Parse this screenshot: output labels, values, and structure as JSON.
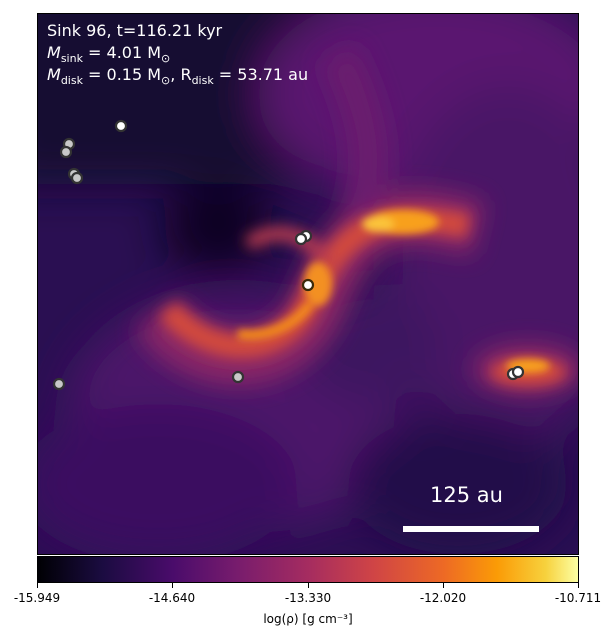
{
  "annotation": {
    "line1": "Sink 96, t=116.21 kyr",
    "line2_prefix": "M",
    "line2_sub": "sink",
    "line2_rest": " = 4.01 M",
    "line2_sun_sub": "⊙",
    "line3_prefix": "M",
    "line3_sub": "disk",
    "line3_mid": " = 0.15 M",
    "line3_sun_sub": "⊙",
    "line3_sep": ", R",
    "line3_r_sub": "disk",
    "line3_rest": " = 53.71 au"
  },
  "scalebar": {
    "label": "125 au"
  },
  "colorbar": {
    "ticks": [
      "-15.949",
      "-14.640",
      "-13.330",
      "-12.020",
      "-10.711"
    ],
    "label": "log(ρ) [g cm⁻³]",
    "colormap": "inferno"
  },
  "sink_particles": [
    {
      "name": "sink-upper-left-a",
      "style": "grey"
    },
    {
      "name": "sink-upper-left-b",
      "style": "grey"
    },
    {
      "name": "sink-upper-left-c",
      "style": "white"
    },
    {
      "name": "sink-left-d",
      "style": "grey"
    },
    {
      "name": "sink-left-e",
      "style": "grey"
    },
    {
      "name": "sink-center-pair-a",
      "style": "white"
    },
    {
      "name": "sink-center-pair-b",
      "style": "white"
    },
    {
      "name": "sink-central-96",
      "style": "white-highlight"
    },
    {
      "name": "sink-lower-center",
      "style": "grey"
    },
    {
      "name": "sink-far-left",
      "style": "grey"
    },
    {
      "name": "sink-right-pair-a",
      "style": "white"
    },
    {
      "name": "sink-right-pair-b",
      "style": "white"
    }
  ]
}
